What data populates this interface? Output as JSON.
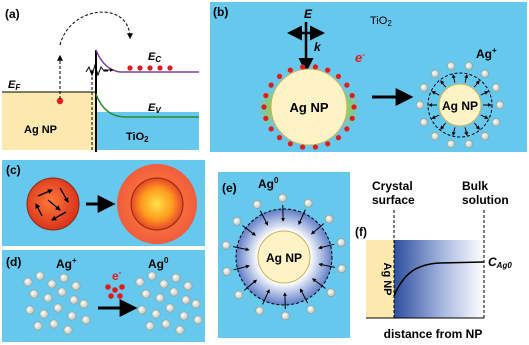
{
  "panels": {
    "a": {
      "label": "(a)",
      "ef": "E",
      "ef_sub": "F",
      "ec": "E",
      "ec_sub": "C",
      "ev": "E",
      "ev_sub": "V",
      "left_material": "Ag NP",
      "right_material": "TiO",
      "right_material_sub": "2"
    },
    "b": {
      "label": "(b)",
      "material": "TiO",
      "material_sub": "2",
      "field": "E",
      "wavevector": "k",
      "electron": "e",
      "electron_sup": "-",
      "nanoparticle": "Ag NP",
      "nanoparticle_after": "Ag NP",
      "ion": "Ag",
      "ion_sup": "+"
    },
    "c": {
      "label": "(c)"
    },
    "d": {
      "label": "(d)",
      "ion": "Ag",
      "ion_sup": "+",
      "electron": "e",
      "electron_sup": "-",
      "atom": "Ag",
      "atom_sup": "0"
    },
    "e": {
      "label": "(e)",
      "atom": "Ag",
      "atom_sup": "0",
      "nanoparticle": "Ag NP"
    },
    "f": {
      "label": "(f)",
      "crystal_surface": [
        "Crystal",
        "surface"
      ],
      "bulk_solution": [
        "Bulk",
        "solution"
      ],
      "nanoparticle": "Ag NP",
      "concentration": "C",
      "concentration_sub": "Ag0",
      "xlabel": "distance from NP"
    }
  },
  "colors": {
    "blue_background": "#67c8ee",
    "nanoparticle_fill": "#fdf3c4",
    "ag_region": "#fce9b0",
    "conduction_band": "#7a3fa8",
    "valence_band": "#2d8a2d",
    "electron": "#e01b1b",
    "ion": "#c9cfc8"
  }
}
